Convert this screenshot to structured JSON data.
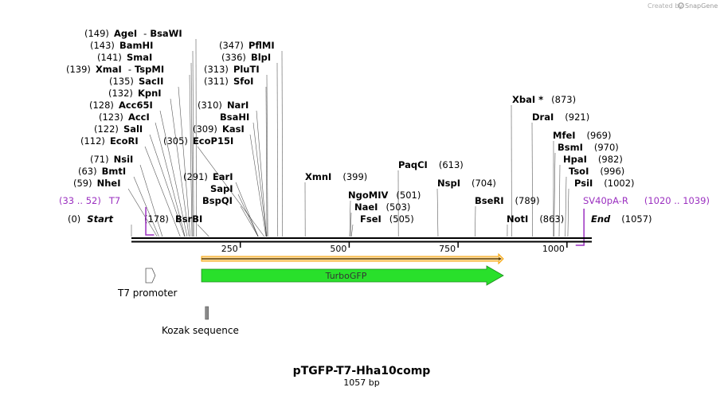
{
  "watermark": {
    "prefix": "Created by",
    "brand": "SnapGene"
  },
  "title": "pTGFP-T7-Hha10comp",
  "subtitle": "1057 bp",
  "sequence": {
    "length": 1057,
    "ticks": [
      250,
      500,
      750,
      1000
    ]
  },
  "colors": {
    "primer": "#9b30c0",
    "turbogfp_fill": "#29e02b",
    "orf_fill": "#f7a200",
    "promoter_fill": "#ffffff",
    "kozak_fill": "#8a8a8a",
    "line": "#000000"
  },
  "sites": {
    "agei": {
      "name": "AgeI",
      "pos": "(149)",
      "bp": 149,
      "partner": "BsaWI"
    },
    "bamhi": {
      "name": "BamHI",
      "pos": "(143)",
      "bp": 143
    },
    "smai": {
      "name": "SmaI",
      "pos": "(141)",
      "bp": 141
    },
    "xmai": {
      "name": "XmaI",
      "pos": "(139)",
      "bp": 139,
      "partner": "TspMI"
    },
    "sacii": {
      "name": "SacII",
      "pos": "(135)",
      "bp": 135
    },
    "kpni": {
      "name": "KpnI",
      "pos": "(132)",
      "bp": 132
    },
    "acc65i": {
      "name": "Acc65I",
      "pos": "(128)",
      "bp": 128
    },
    "acci": {
      "name": "AccI",
      "pos": "(123)",
      "bp": 123
    },
    "sali": {
      "name": "SalI",
      "pos": "(122)",
      "bp": 122
    },
    "ecori": {
      "name": "EcoRI",
      "pos": "(112)",
      "bp": 112
    },
    "nsii": {
      "name": "NsiI",
      "pos": "(71)",
      "bp": 71
    },
    "bmti": {
      "name": "BmtI",
      "pos": "(63)",
      "bp": 63
    },
    "nhei": {
      "name": "NheI",
      "pos": "(59)",
      "bp": 59
    },
    "bsrbi": {
      "name": "BsrBI",
      "pos": "(178)",
      "bp": 178
    },
    "ecop15i": {
      "name": "EcoP15I",
      "pos": "(305)",
      "bp": 305
    },
    "eari": {
      "name": "EarI",
      "pos": "(291)",
      "bp": 291
    },
    "sapi": {
      "name": "SapI",
      "bp": 291
    },
    "bspqi": {
      "name": "BspQI",
      "bp": 291
    },
    "pflmi": {
      "name": "PflMI",
      "pos": "(347)",
      "bp": 347
    },
    "blpi": {
      "name": "BlpI",
      "pos": "(336)",
      "bp": 336
    },
    "pluti": {
      "name": "PluTI",
      "pos": "(313)",
      "bp": 313
    },
    "sfoi": {
      "name": "SfoI",
      "pos": "(311)",
      "bp": 311
    },
    "nari": {
      "name": "NarI",
      "pos": "(310)",
      "bp": 310
    },
    "bsahi": {
      "name": "BsaHI",
      "bp": 310
    },
    "kasi": {
      "name": "KasI",
      "pos": "(309)",
      "bp": 309
    },
    "xmni": {
      "name": "XmnI",
      "pos": "(399)",
      "bp": 399
    },
    "ngomiv": {
      "name": "NgoMIV",
      "pos": "(501)",
      "bp": 501
    },
    "naei": {
      "name": "NaeI",
      "pos": "(503)",
      "bp": 503
    },
    "fsei": {
      "name": "FseI",
      "pos": "(505)",
      "bp": 505
    },
    "paqci": {
      "name": "PaqCI",
      "pos": "(613)",
      "bp": 613
    },
    "nspi": {
      "name": "NspI",
      "pos": "(704)",
      "bp": 704
    },
    "bseri": {
      "name": "BseRI",
      "pos": "(789)",
      "bp": 789
    },
    "xbai": {
      "name": "XbaI",
      "star": "*",
      "pos": "(873)",
      "bp": 873
    },
    "drai": {
      "name": "DraI",
      "pos": "(921)",
      "bp": 921
    },
    "noti": {
      "name": "NotI",
      "pos": "(863)",
      "bp": 863
    },
    "mfei": {
      "name": "MfeI",
      "pos": "(969)",
      "bp": 969
    },
    "bsmi": {
      "name": "BsmI",
      "pos": "(970)",
      "bp": 970
    },
    "hpai": {
      "name": "HpaI",
      "pos": "(982)",
      "bp": 982
    },
    "tsoi": {
      "name": "TsoI",
      "pos": "(996)",
      "bp": 996
    },
    "psii": {
      "name": "PsiI",
      "pos": "(1002)",
      "bp": 1002
    }
  },
  "ends": {
    "start": {
      "label": "Start",
      "pos": "(0)",
      "bp": 0
    },
    "end": {
      "label": "End",
      "pos": "(1057)",
      "bp": 1057
    }
  },
  "primers": {
    "t7": {
      "name": "T7",
      "range": "(33 .. 52)",
      "start_bp": 33,
      "end_bp": 52
    },
    "sv40": {
      "name": "SV40pA-R",
      "range": "(1020 .. 1039)",
      "start_bp": 1020,
      "end_bp": 1039
    }
  },
  "features": {
    "turbogfp": {
      "label": "TurboGFP",
      "start_bp": 161,
      "end_bp": 854
    },
    "orf": {
      "start_bp": 161,
      "end_bp": 854
    },
    "t7_promoter": {
      "label": "T7 promoter",
      "start_bp": 33,
      "end_bp": 51
    },
    "kozak": {
      "label": "Kozak sequence",
      "start_bp": 155,
      "end_bp": 164
    }
  }
}
